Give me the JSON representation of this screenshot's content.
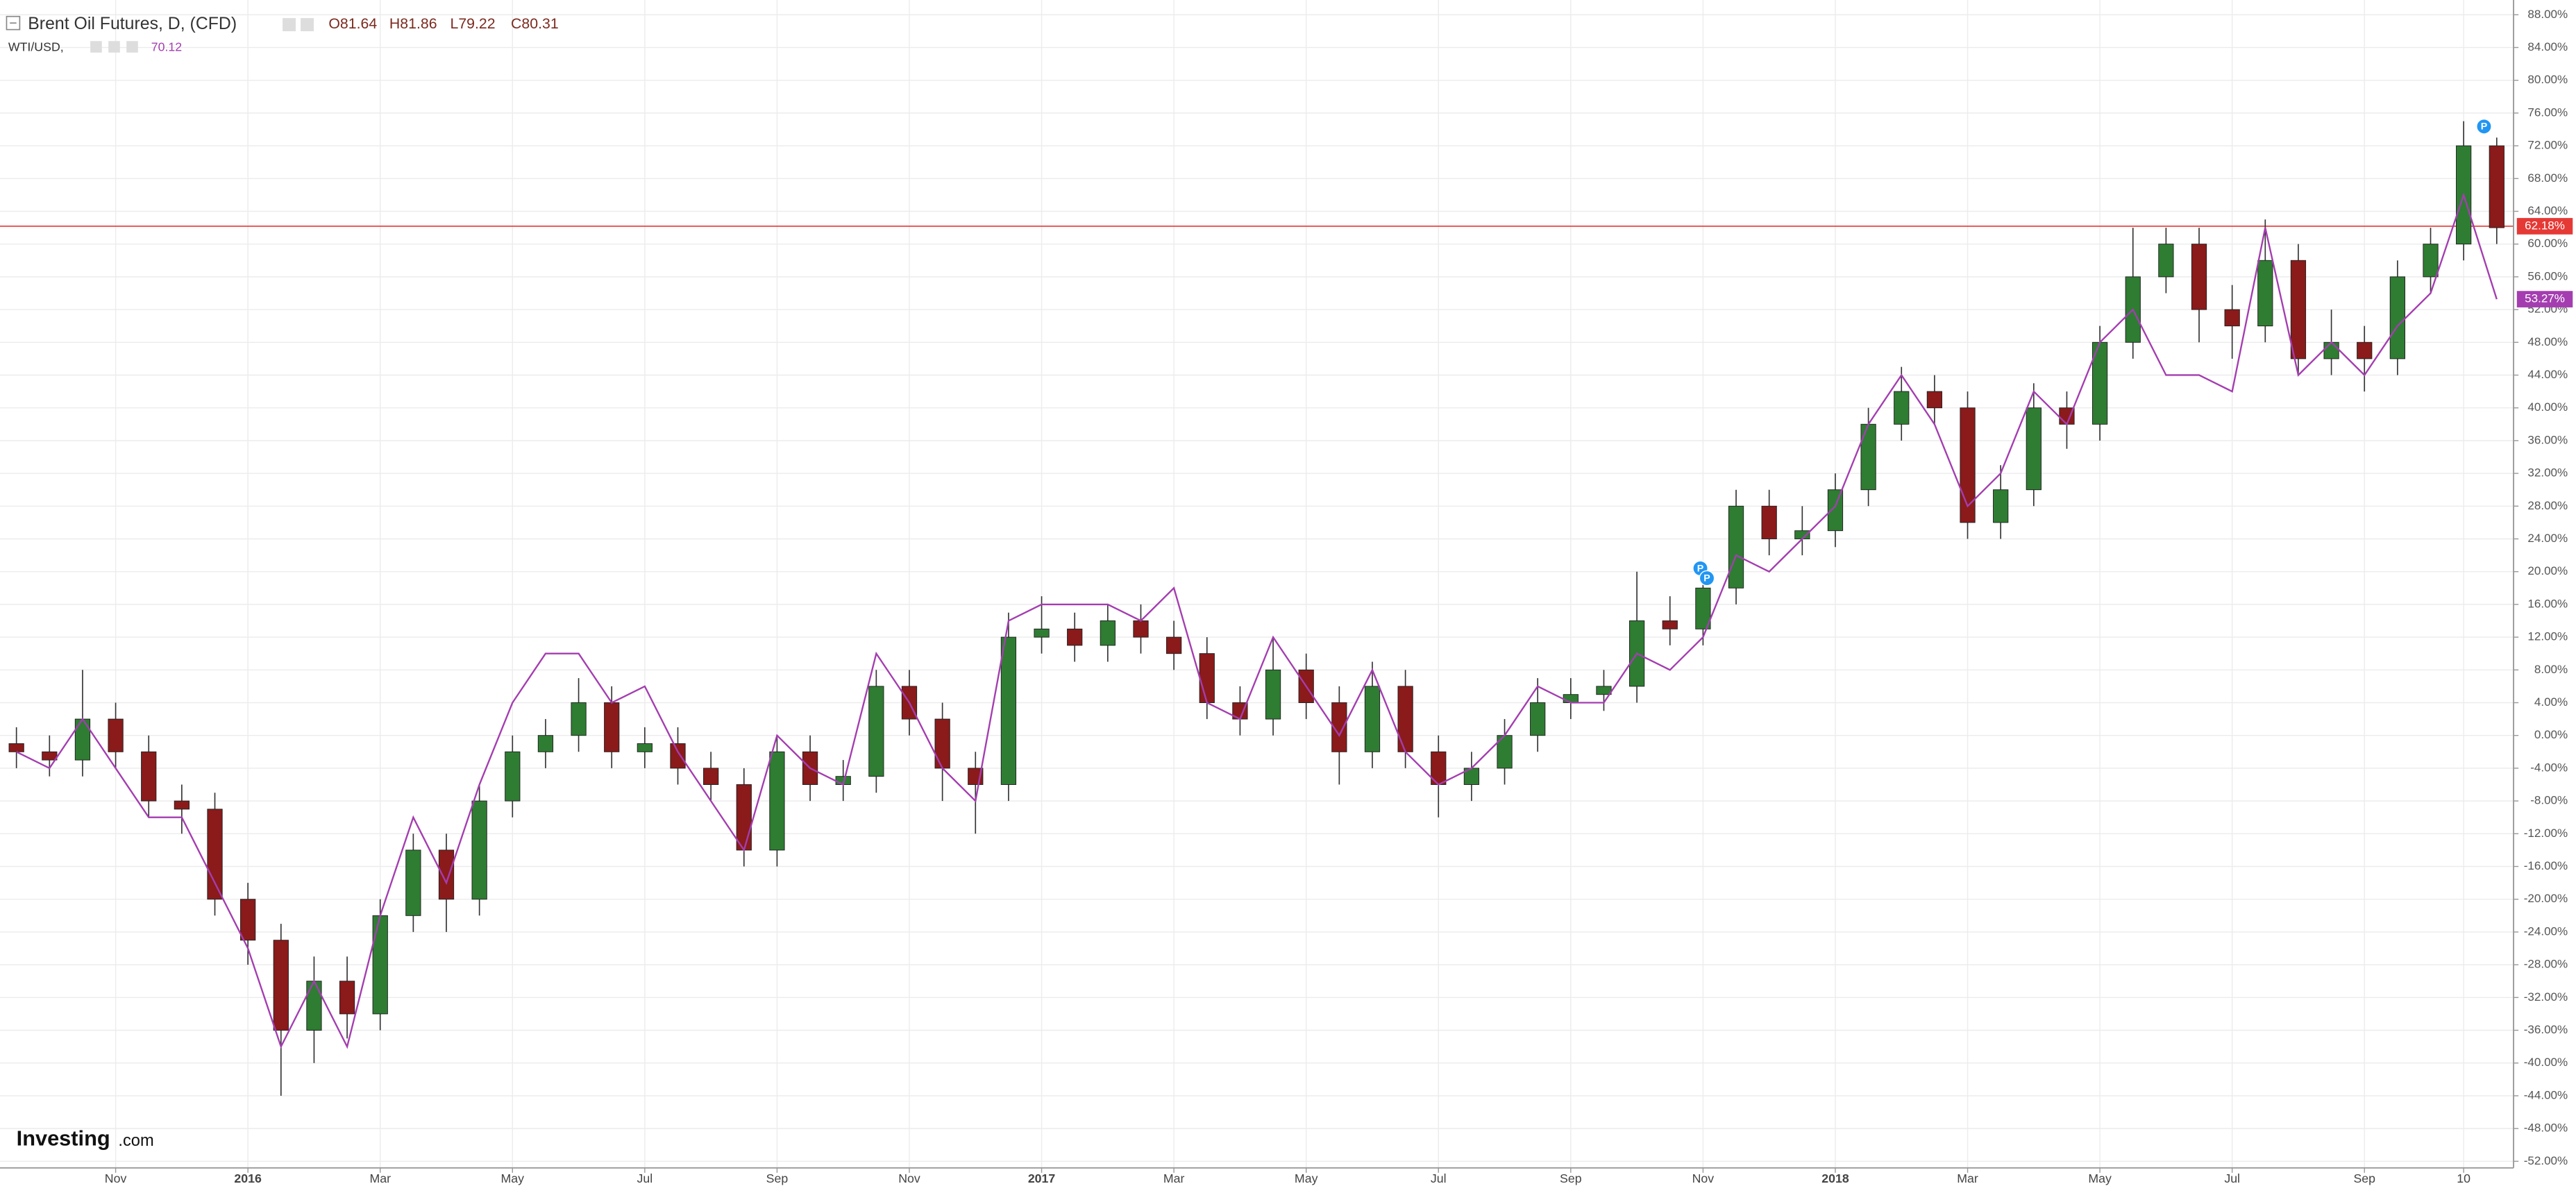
{
  "chart_data": {
    "type": "candlestick",
    "categories": [
      null,
      null,
      null,
      "Nov",
      null,
      null,
      null,
      "2016",
      null,
      null,
      null,
      "Mar",
      null,
      null,
      null,
      "May",
      null,
      null,
      null,
      "Jul",
      null,
      null,
      null,
      "Sep",
      null,
      null,
      null,
      "Nov",
      null,
      null,
      null,
      "2017",
      null,
      null,
      null,
      "Mar",
      null,
      null,
      null,
      "May",
      null,
      null,
      null,
      "Jul",
      null,
      null,
      null,
      "Sep",
      null,
      null,
      null,
      "Nov",
      null,
      null,
      null,
      "2018",
      null,
      null,
      null,
      "Mar",
      null,
      null,
      null,
      "May",
      null,
      null,
      null,
      "Jul",
      null,
      null,
      null,
      "Sep",
      null,
      null,
      "10",
      null
    ],
    "series": [
      {
        "name": "Brent Oil Futures, D, (CFD)",
        "type": "candlestick",
        "color_up": "#2e7d32",
        "color_down": "#8b1a1a",
        "header_labels": [
          "O81.64",
          "H81.86",
          "L79.22",
          "C80.31"
        ],
        "open": [
          -1,
          -2,
          -3,
          2,
          -2,
          -8,
          -9,
          -20,
          -25,
          -36,
          -30,
          -34,
          -22,
          -14,
          -20,
          -8,
          -2,
          0,
          4,
          -2,
          -1,
          -4,
          -6,
          -14,
          -2,
          -6,
          -5,
          6,
          2,
          -4,
          -6,
          12,
          13,
          11,
          14,
          12,
          10,
          4,
          2,
          8,
          4,
          -2,
          6,
          -2,
          -6,
          -4,
          0,
          4,
          5,
          6,
          14,
          13,
          18,
          28,
          24,
          25,
          30,
          38,
          42,
          40,
          26,
          30,
          40,
          38,
          48,
          56,
          60,
          52,
          50,
          58,
          46,
          48,
          46,
          56,
          60,
          72
        ],
        "high": [
          1,
          0,
          8,
          4,
          0,
          -6,
          -7,
          -18,
          -23,
          -27,
          -27,
          -20,
          -12,
          -12,
          -6,
          0,
          2,
          7,
          6,
          1,
          1,
          -2,
          -4,
          0,
          0,
          -3,
          8,
          8,
          4,
          -2,
          15,
          17,
          15,
          16,
          16,
          14,
          12,
          6,
          12,
          10,
          6,
          9,
          8,
          0,
          -2,
          2,
          7,
          7,
          8,
          20,
          17,
          20,
          30,
          30,
          28,
          32,
          40,
          45,
          44,
          42,
          33,
          43,
          42,
          50,
          62,
          62,
          62,
          55,
          63,
          60,
          52,
          50,
          58,
          62,
          75,
          73
        ],
        "low": [
          -4,
          -5,
          -5,
          -4,
          -10,
          -12,
          -22,
          -28,
          -44,
          -40,
          -37,
          -36,
          -24,
          -24,
          -22,
          -10,
          -4,
          -2,
          -4,
          -4,
          -6,
          -8,
          -16,
          -16,
          -8,
          -8,
          -7,
          0,
          -8,
          -12,
          -8,
          10,
          9,
          9,
          10,
          8,
          2,
          0,
          0,
          2,
          -6,
          -4,
          -4,
          -10,
          -8,
          -6,
          -2,
          2,
          3,
          4,
          11,
          11,
          16,
          22,
          22,
          23,
          28,
          36,
          38,
          24,
          24,
          28,
          35,
          36,
          46,
          54,
          48,
          46,
          48,
          44,
          44,
          42,
          44,
          54,
          58,
          60
        ],
        "close": [
          -2,
          -3,
          2,
          -2,
          -8,
          -9,
          -20,
          -25,
          -36,
          -30,
          -34,
          -22,
          -14,
          -20,
          -8,
          -2,
          0,
          4,
          -2,
          -1,
          -4,
          -6,
          -14,
          -2,
          -6,
          -5,
          6,
          2,
          -4,
          -6,
          12,
          13,
          11,
          14,
          12,
          10,
          4,
          2,
          8,
          4,
          -2,
          6,
          -2,
          -6,
          -4,
          0,
          4,
          5,
          6,
          14,
          13,
          18,
          28,
          24,
          25,
          30,
          38,
          42,
          40,
          26,
          30,
          40,
          38,
          48,
          56,
          60,
          52,
          50,
          58,
          46,
          48,
          46,
          56,
          60,
          72,
          62
        ]
      },
      {
        "name": "WTI/USD,",
        "type": "line",
        "color": "#a43db0",
        "header_value": "70.12",
        "last_value_label": "53.27%",
        "values": [
          -2,
          -4,
          2,
          -4,
          -10,
          -10,
          -18,
          -26,
          -38,
          -30,
          -38,
          -22,
          -10,
          -18,
          -6,
          4,
          10,
          10,
          4,
          6,
          -2,
          -8,
          -14,
          0,
          -4,
          -6,
          10,
          4,
          -4,
          -8,
          14,
          16,
          16,
          16,
          14,
          18,
          4,
          2,
          12,
          6,
          0,
          8,
          -2,
          -6,
          -4,
          0,
          6,
          4,
          4,
          10,
          8,
          12,
          22,
          20,
          24,
          28,
          38,
          44,
          38,
          28,
          32,
          42,
          38,
          48,
          52,
          44,
          44,
          42,
          62,
          44,
          48,
          44,
          50,
          54,
          66,
          53.27
        ]
      }
    ],
    "price_line": {
      "value": 62.18,
      "label": "62.18%",
      "color": "#e53935"
    },
    "ylim": [
      -52.8,
      89.8
    ],
    "yticks": [
      {
        "value": 88,
        "label": "88.00%"
      },
      {
        "value": 84,
        "label": "84.00%"
      },
      {
        "value": 80,
        "label": "80.00%"
      },
      {
        "value": 76,
        "label": "76.00%"
      },
      {
        "value": 72,
        "label": "72.00%"
      },
      {
        "value": 68,
        "label": "68.00%"
      },
      {
        "value": 64,
        "label": "64.00%"
      },
      {
        "value": 60,
        "label": "60.00%"
      },
      {
        "value": 56,
        "label": "56.00%"
      },
      {
        "value": 52,
        "label": "52.00%"
      },
      {
        "value": 48,
        "label": "48.00%"
      },
      {
        "value": 44,
        "label": "44.00%"
      },
      {
        "value": 40,
        "label": "40.00%"
      },
      {
        "value": 36,
        "label": "36.00%"
      },
      {
        "value": 32,
        "label": "32.00%"
      },
      {
        "value": 28,
        "label": "28.00%"
      },
      {
        "value": 24,
        "label": "24.00%"
      },
      {
        "value": 20,
        "label": "20.00%"
      },
      {
        "value": 16,
        "label": "16.00%"
      },
      {
        "value": 12,
        "label": "12.00%"
      },
      {
        "value": 8,
        "label": "8.00%"
      },
      {
        "value": 4,
        "label": "4.00%"
      },
      {
        "value": 0,
        "label": "0.00%"
      },
      {
        "value": -4,
        "label": "-4.00%"
      },
      {
        "value": -8,
        "label": "-8.00%"
      },
      {
        "value": -12,
        "label": "-12.00%"
      },
      {
        "value": -16,
        "label": "-16.00%"
      },
      {
        "value": -20,
        "label": "-20.00%"
      },
      {
        "value": -24,
        "label": "-24.00%"
      },
      {
        "value": -28,
        "label": "-28.00%"
      },
      {
        "value": -32,
        "label": "-32.00%"
      },
      {
        "value": -36,
        "label": "-36.00%"
      },
      {
        "value": -40,
        "label": "-40.00%"
      },
      {
        "value": -44,
        "label": "-44.00%"
      },
      {
        "value": -48,
        "label": "-48.00%"
      },
      {
        "value": -52,
        "label": "-52.00%"
      }
    ],
    "grid": true,
    "event_label": "P",
    "logo": [
      "Investing",
      ".com"
    ]
  }
}
